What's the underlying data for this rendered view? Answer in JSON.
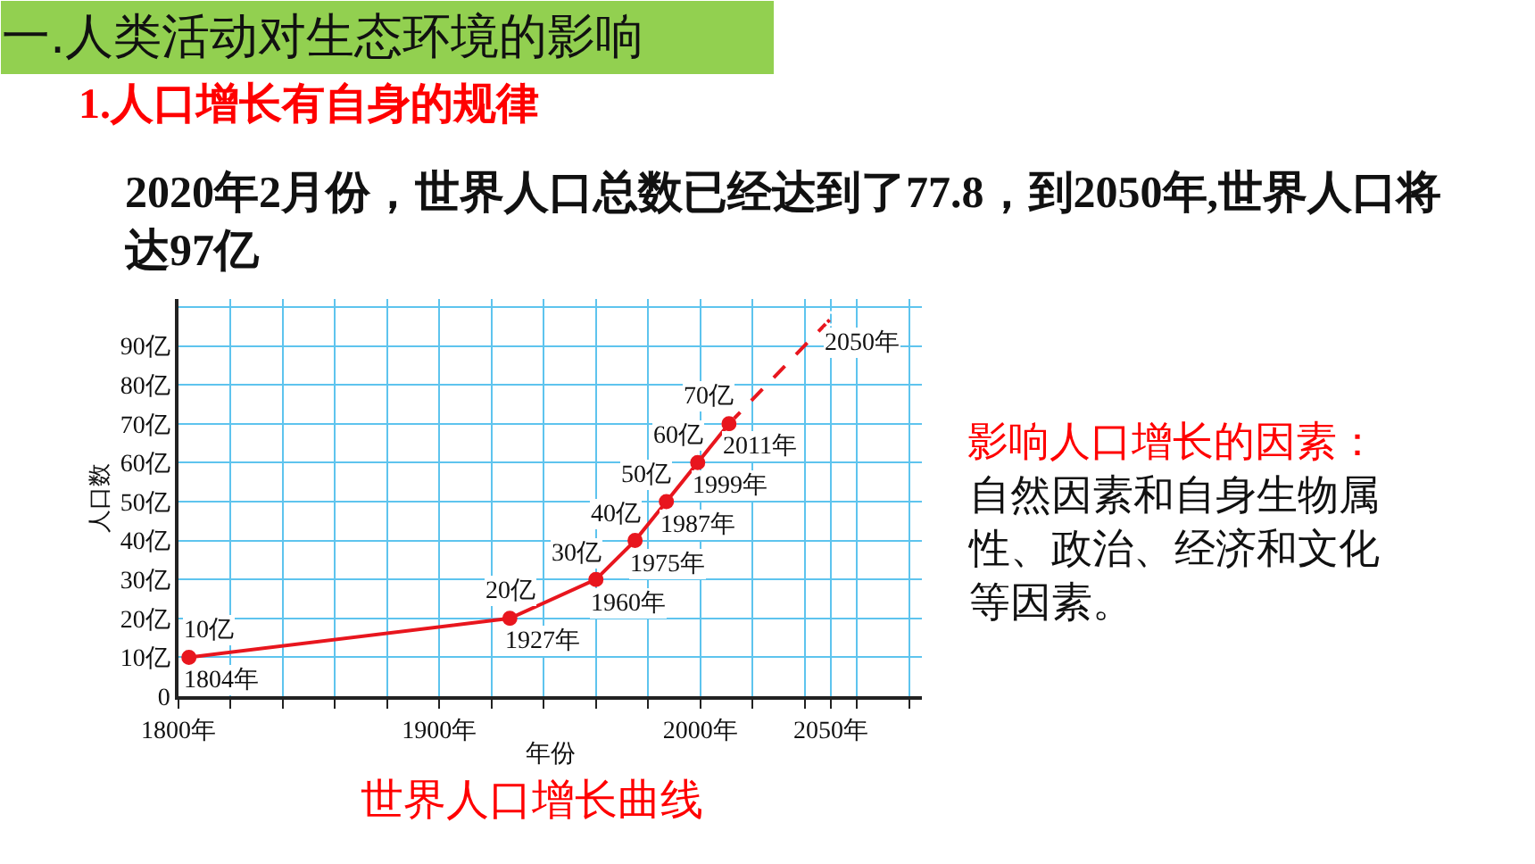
{
  "chart_data": {
    "type": "line",
    "title": "一.人类活动对生态环境的影响",
    "subtitle": "1.人口增长有自身的规律",
    "xlabel": "年份",
    "ylabel": "人口数",
    "series": [
      {
        "color": "#e8161e",
        "line_style": "dashed",
        "marker": "circle",
        "x": [
          2011,
          2050
        ],
        "values": [
          70,
          97
        ]
      },
      {
        "color": "#e8161e",
        "line_style": "solid",
        "marker": "circle",
        "x": [
          1804,
          1927,
          1960,
          1975,
          1987,
          1999,
          2011
        ],
        "values": [
          10,
          20,
          30,
          40,
          50,
          60,
          70
        ],
        "value_labels": [
          "10亿",
          "20亿",
          "30亿",
          "40亿",
          "50亿",
          "60亿",
          "70亿"
        ]
      }
    ],
    "xlim": [
      1800,
      2085
    ],
    "xticks": [
      {
        "value": 1800,
        "label": "1800年"
      },
      {
        "value": 1820,
        "label": null
      },
      {
        "value": 1840,
        "label": null
      },
      {
        "value": 1860,
        "label": null
      },
      {
        "value": 1880,
        "label": null
      },
      {
        "value": 1900,
        "label": "1900年"
      },
      {
        "value": 1920,
        "label": null
      },
      {
        "value": 1940,
        "label": null
      },
      {
        "value": 1960,
        "label": null
      },
      {
        "value": 1980,
        "label": null
      },
      {
        "value": 2000,
        "label": "2000年"
      },
      {
        "value": 2020,
        "label": null
      },
      {
        "value": 2040,
        "label": null
      },
      {
        "value": 2050,
        "label": "2050年"
      },
      {
        "value": 2060,
        "label": null
      },
      {
        "value": 2080,
        "label": null
      }
    ],
    "ylim": [
      0,
      102
    ],
    "yticks": [
      0,
      {
        "value": 10,
        "label": "10亿"
      },
      {
        "value": 20,
        "label": "20亿"
      },
      {
        "value": 30,
        "label": "30亿"
      },
      {
        "value": 40,
        "label": "40亿"
      },
      {
        "value": 50,
        "label": "50亿"
      },
      {
        "value": 60,
        "label": "60亿"
      },
      {
        "value": 70,
        "label": "70亿"
      },
      {
        "value": 80,
        "label": "80亿"
      },
      {
        "value": 90,
        "label": "90亿"
      },
      {
        "value": 100,
        "label": null
      }
    ],
    "grid": true,
    "annotations": [
      {
        "text": "1804年",
        "x": 1804,
        "y": 10
      },
      {
        "text": "1927年",
        "x": 1927,
        "y": 20
      },
      {
        "text": "1960年",
        "x": 1960,
        "y": 30
      },
      {
        "text": "1975年",
        "x": 1975,
        "y": 40
      },
      {
        "text": "1987年",
        "x": 1987,
        "y": 50
      },
      {
        "text": "1999年",
        "x": 1999,
        "y": 60
      },
      {
        "text": "2011年",
        "x": 2011,
        "y": 70
      },
      {
        "text": "2050年",
        "x": 2050,
        "y": 97
      },
      "2020年2月份，世界人口总数已经达到了77.8，到2050年,世界人口将达97亿",
      "世界人口增长曲线",
      "影响人口增长的因素：",
      "自然因素和自身生物属性、政治、经济和文化等因素。"
    ]
  }
}
